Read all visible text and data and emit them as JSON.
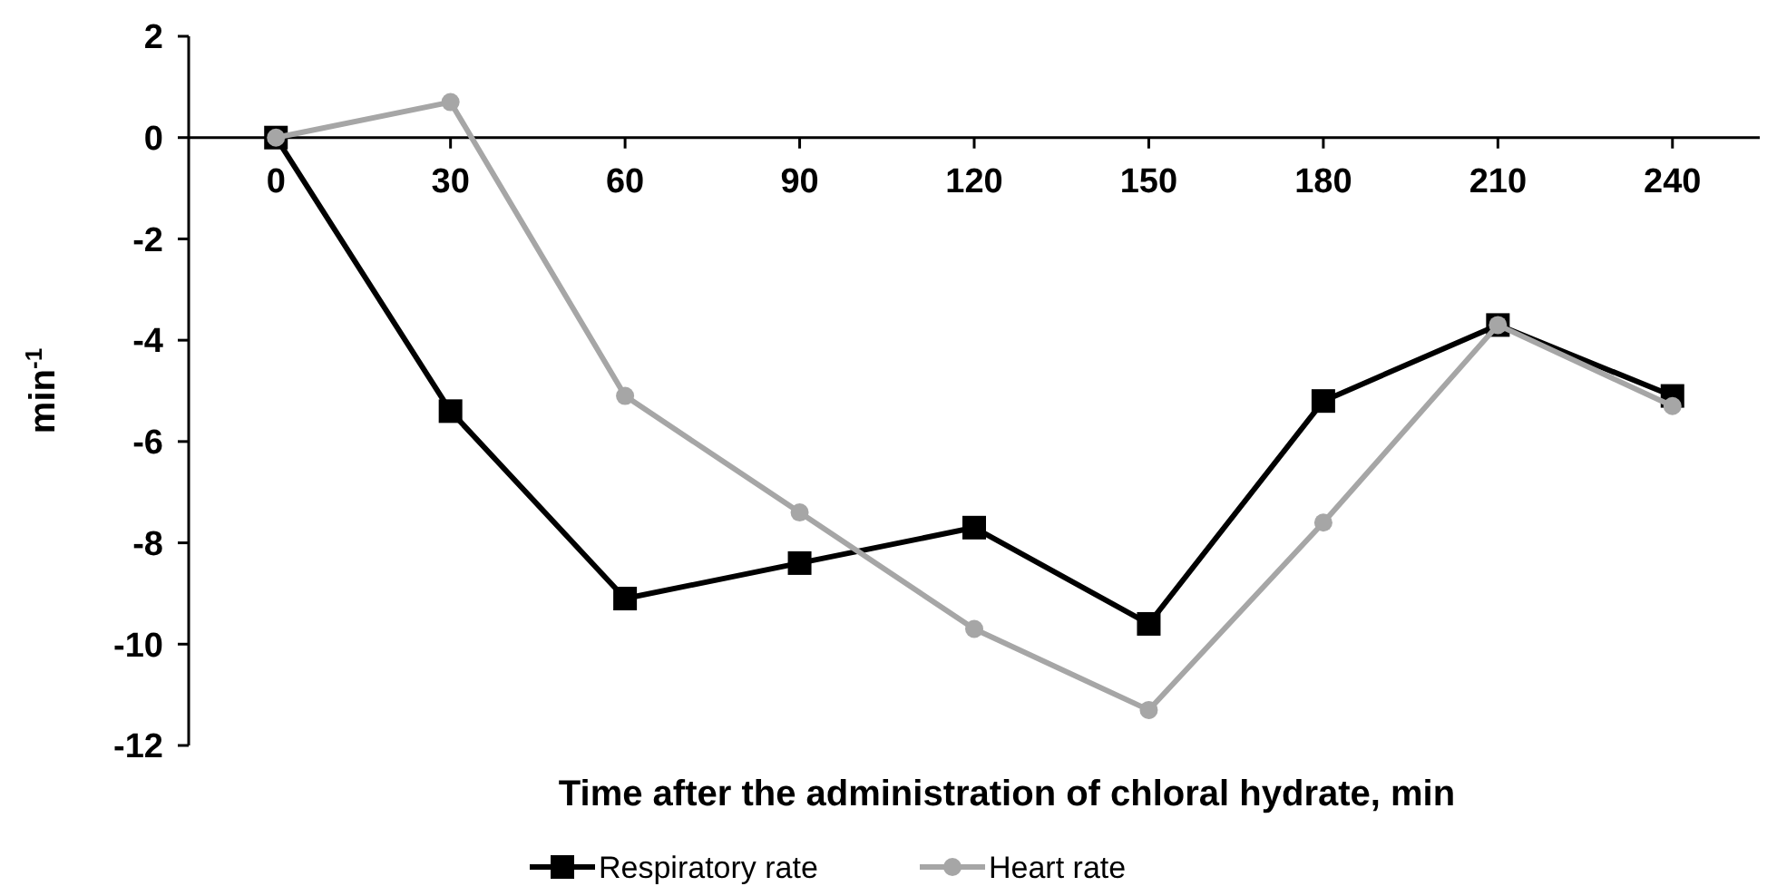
{
  "chart_data": {
    "type": "line",
    "xlabel": "Time after the administration of chloral hydrate, min",
    "ylabel": "min$^{-1}$",
    "categories": [
      "0",
      "30",
      "60",
      "90",
      "120",
      "150",
      "180",
      "210",
      "240"
    ],
    "series": [
      {
        "name": "Respiratory rate",
        "color": "#000000",
        "marker": "square",
        "values": [
          0,
          -5.4,
          -9.1,
          -8.4,
          -7.7,
          -9.6,
          -5.2,
          -3.7,
          -5.1
        ]
      },
      {
        "name": "Heart rate",
        "color": "#a6a6a6",
        "marker": "circle",
        "values": [
          0,
          0.7,
          -5.1,
          -7.4,
          -9.7,
          -11.3,
          -7.6,
          -3.7,
          -5.3
        ]
      }
    ],
    "ylim": [
      -12,
      2
    ],
    "yticks": [
      -12,
      -10,
      -8,
      -6,
      -4,
      -2,
      0,
      2
    ],
    "grid": false,
    "legend": "bottom",
    "line_style": "solid"
  }
}
